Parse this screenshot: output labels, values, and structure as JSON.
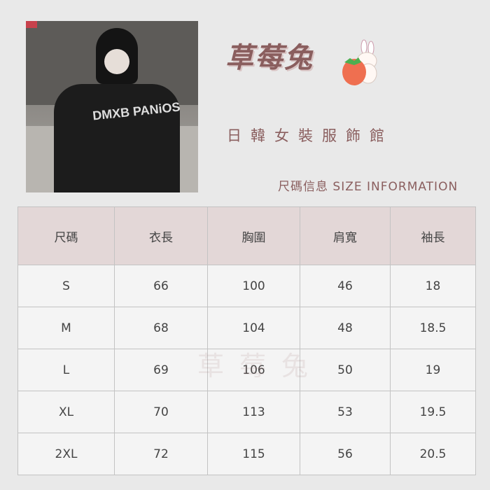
{
  "brand": {
    "title": "草莓兔",
    "subtitle": "日韓女裝服飾館",
    "section": "尺碼信息  SIZE INFORMATION",
    "watermark": "草莓兔",
    "photo_print": "DMXB PANiOS"
  },
  "colors": {
    "accent": "#8a5e5e",
    "header_bg": "#e3d7d7",
    "cell_bg": "#f4f4f4"
  },
  "table": {
    "headers": [
      "尺碼",
      "衣長",
      "胸圍",
      "肩寬",
      "袖長"
    ],
    "rows": [
      [
        "S",
        "66",
        "100",
        "46",
        "18"
      ],
      [
        "M",
        "68",
        "104",
        "48",
        "18.5"
      ],
      [
        "L",
        "69",
        "106",
        "50",
        "19"
      ],
      [
        "XL",
        "70",
        "113",
        "53",
        "19.5"
      ],
      [
        "2XL",
        "72",
        "115",
        "56",
        "20.5"
      ]
    ]
  }
}
